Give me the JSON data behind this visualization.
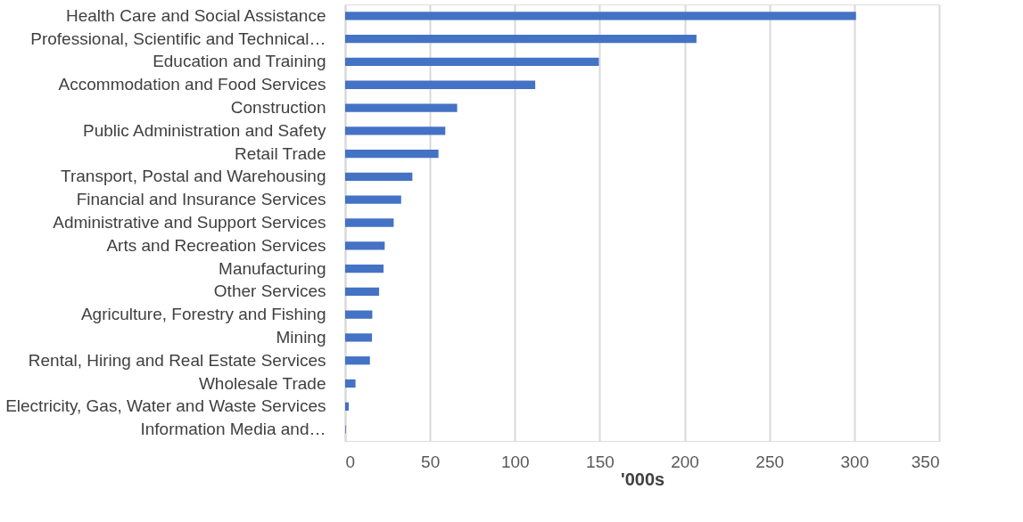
{
  "chart_data": {
    "type": "bar",
    "orientation": "horizontal",
    "xlabel": "'000s",
    "categories": [
      "Health Care and Social Assistance",
      "Professional, Scientific and Technical…",
      "Education and Training",
      "Accommodation and Food Services",
      "Construction",
      "Public Administration and Safety",
      "Retail Trade",
      "Transport, Postal and Warehousing",
      "Financial and Insurance Services",
      "Administrative and Support Services",
      "Arts and Recreation Services",
      "Manufacturing",
      "Other Services",
      "Agriculture, Forestry and Fishing",
      "Mining",
      "Rental, Hiring and Real Estate Services",
      "Wholesale Trade",
      "Electricity, Gas, Water and Waste Services",
      "Information Media and…"
    ],
    "values": [
      301,
      207,
      149.5,
      112,
      66,
      59,
      55,
      39.6,
      33,
      28.6,
      23.3,
      22.6,
      20,
      16,
      15.8,
      14.6,
      6.1,
      2.1,
      0.4
    ],
    "color": "#4472c4",
    "xlim": [
      0,
      350
    ],
    "xticks": [
      0,
      50,
      100,
      150,
      200,
      250,
      300,
      350
    ],
    "grid": "x"
  }
}
